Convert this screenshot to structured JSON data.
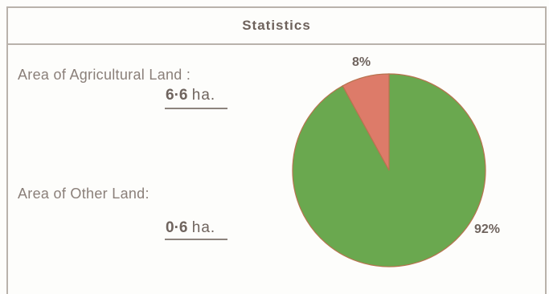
{
  "header": {
    "title": "Statistics"
  },
  "stats": {
    "agricultural_label": "Area of Agricultural Land :",
    "agricultural_value": "6·6",
    "agricultural_unit": "ha.",
    "other_label": "Area of Other Land:",
    "other_value": "0·6",
    "other_unit": "ha."
  },
  "chart_data": {
    "type": "pie",
    "title": "",
    "slices": [
      {
        "label": "92%",
        "value": 92,
        "color": "#6aa84f"
      },
      {
        "label": "8%",
        "value": 8,
        "color": "#dd7b69"
      }
    ]
  }
}
